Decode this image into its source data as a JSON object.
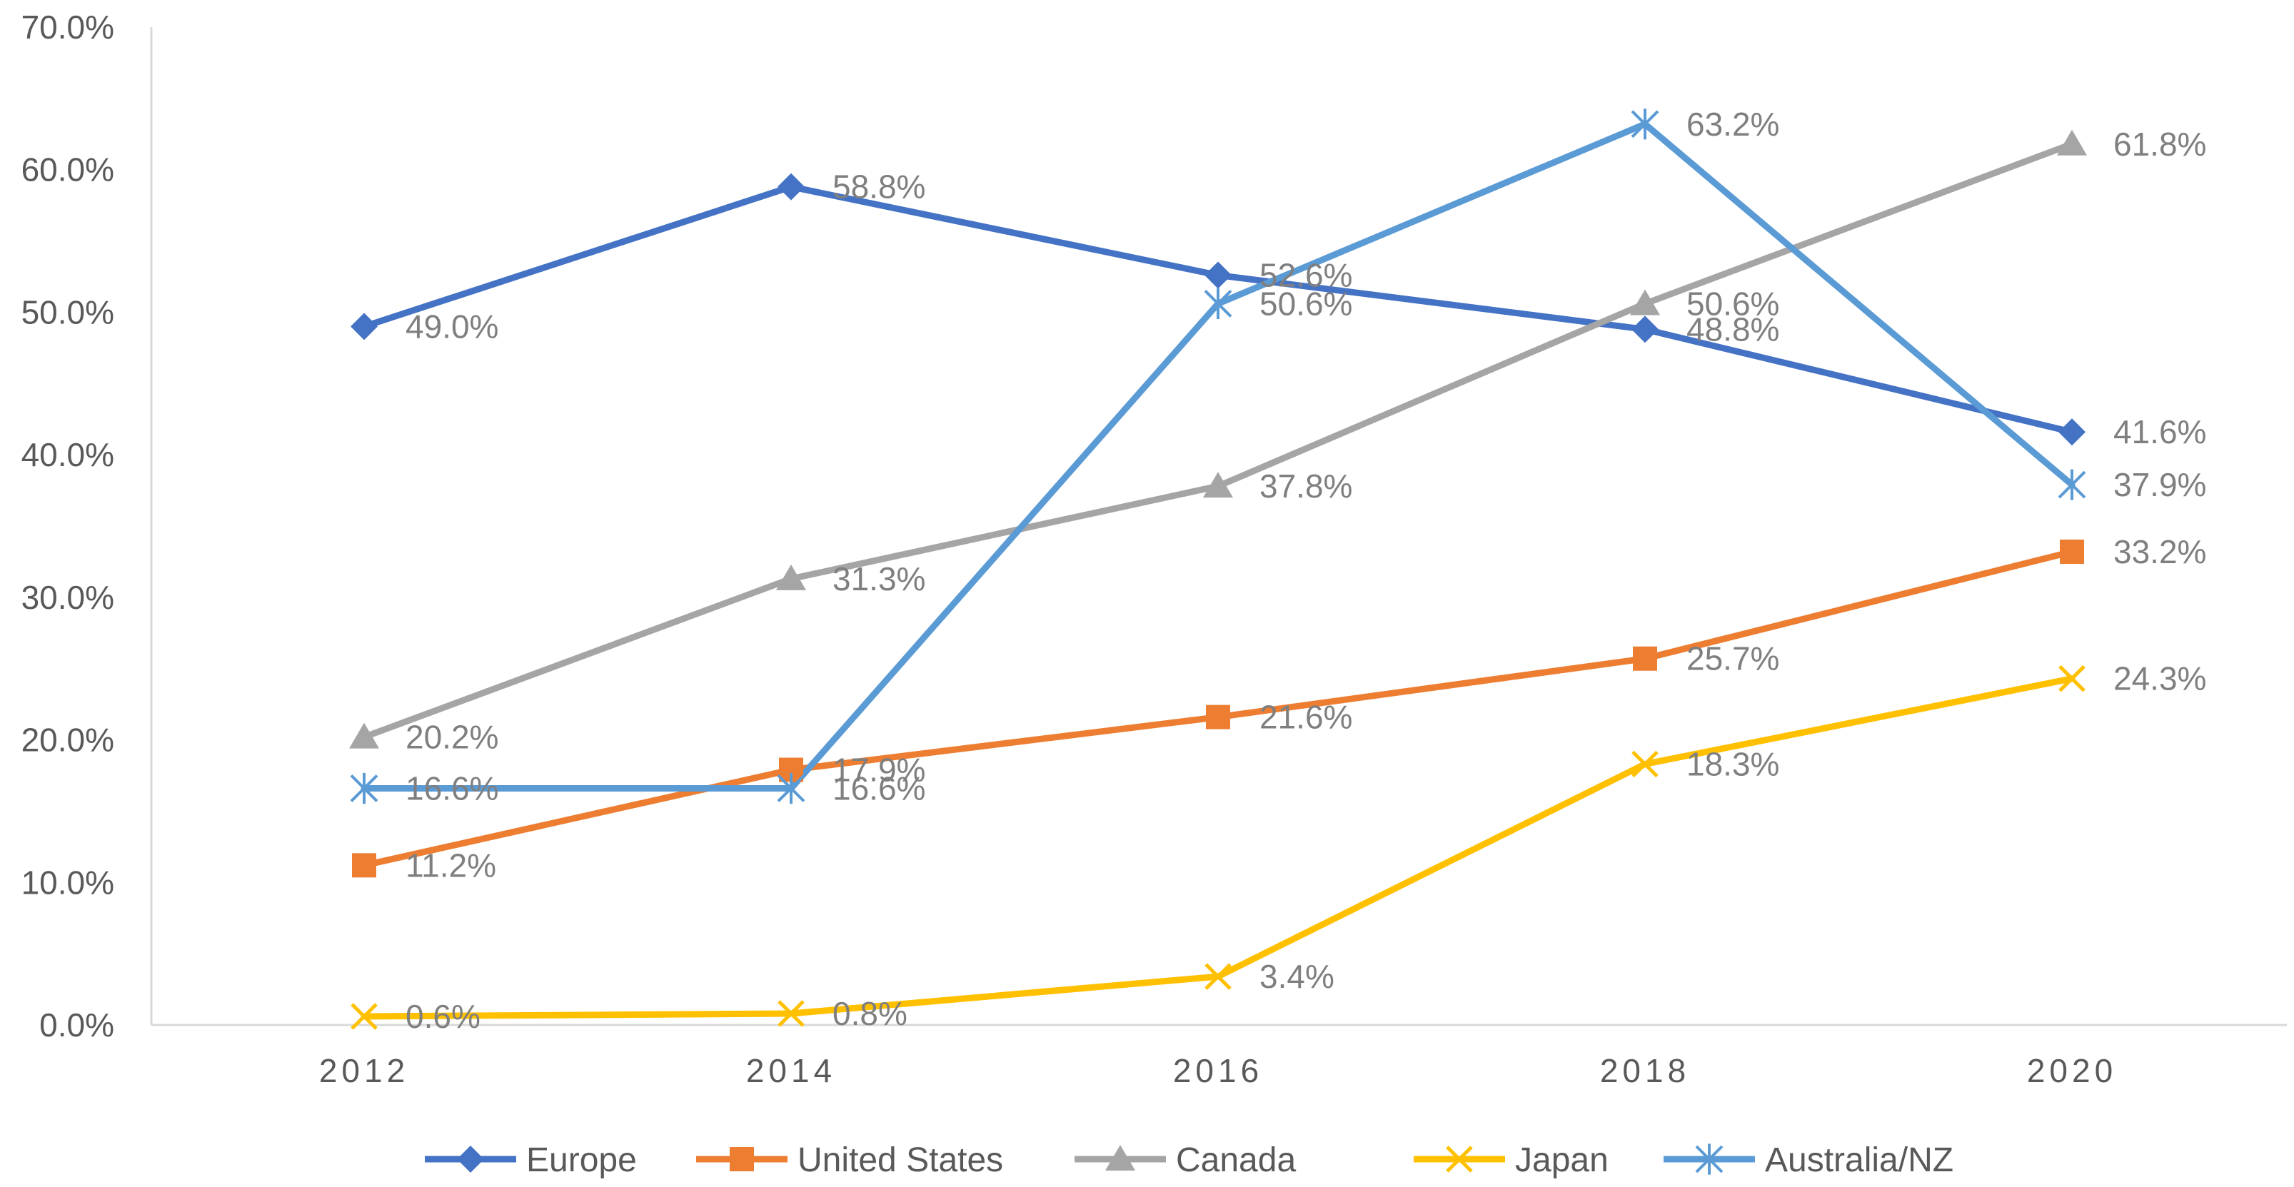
{
  "chart_data": {
    "type": "line",
    "title": "",
    "xlabel": "",
    "ylabel": "",
    "x": [
      "2012",
      "2014",
      "2016",
      "2018",
      "2020"
    ],
    "y_ticks": [
      "0.0%",
      "10.0%",
      "20.0%",
      "30.0%",
      "40.0%",
      "50.0%",
      "60.0%",
      "70.0%"
    ],
    "ylim": [
      0,
      70
    ],
    "grid": false,
    "legend_position": "bottom",
    "series": [
      {
        "name": "Europe",
        "color": "#4472C4",
        "marker": "diamond",
        "values": [
          49.0,
          58.8,
          52.6,
          48.8,
          41.6
        ],
        "labels": [
          "49.0%",
          "58.8%",
          "52.6%",
          "48.8%",
          "41.6%"
        ]
      },
      {
        "name": "United States",
        "color": "#ED7D31",
        "marker": "square",
        "values": [
          11.2,
          17.9,
          21.6,
          25.7,
          33.2
        ],
        "labels": [
          "11.2%",
          "17.9%",
          "21.6%",
          "25.7%",
          "33.2%"
        ]
      },
      {
        "name": "Canada",
        "color": "#A5A5A5",
        "marker": "triangle",
        "values": [
          20.2,
          31.3,
          37.8,
          50.6,
          61.8
        ],
        "labels": [
          "20.2%",
          "31.3%",
          "37.8%",
          "50.6%",
          "61.8%"
        ]
      },
      {
        "name": "Japan",
        "color": "#FFC000",
        "marker": "x",
        "values": [
          0.6,
          0.8,
          3.4,
          18.3,
          24.3
        ],
        "labels": [
          "0.6%",
          "0.8%",
          "3.4%",
          "18.3%",
          "24.3%"
        ]
      },
      {
        "name": "Australia/NZ",
        "color": "#5B9BD5",
        "marker": "star",
        "values": [
          16.6,
          16.6,
          50.6,
          63.2,
          37.9
        ],
        "labels": [
          "16.6%",
          "16.6%",
          "50.6%",
          "63.2%",
          "37.9%"
        ]
      }
    ]
  }
}
